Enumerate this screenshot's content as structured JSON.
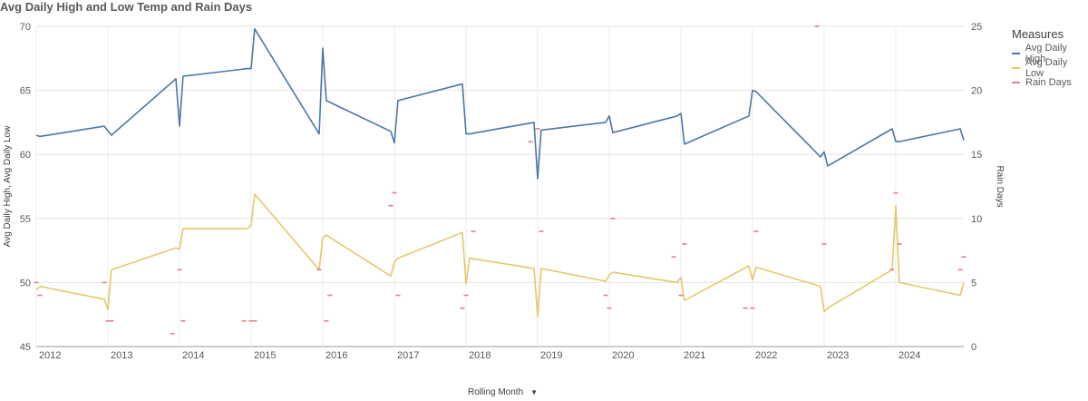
{
  "title": "Avg Daily High and Low Temp and Rain Days",
  "legend": {
    "title": "Measures",
    "items": [
      {
        "label": "Avg Daily High",
        "color": "#4a78a8"
      },
      {
        "label": "Avg Daily Low",
        "color": "#e3c96a"
      },
      {
        "label": "Rain Days",
        "color": "#e87b8e"
      }
    ]
  },
  "x_axis": {
    "title": "Rolling Month",
    "icon": "caret-down-icon"
  },
  "chart_data": {
    "type": "line",
    "title": "Avg Daily High and Low Temp and Rain Days",
    "xlabel": "Rolling Month",
    "ylabel": "Avg Daily High, Avg Daily Low",
    "y2label": "Rain Days",
    "ylim": [
      45,
      70
    ],
    "y2lim": [
      0,
      25
    ],
    "yticks": [
      45,
      50,
      55,
      60,
      65,
      70
    ],
    "y2ticks": [
      0,
      5,
      10,
      15,
      20,
      25
    ],
    "xlim": [
      2011.95,
      2024.9
    ],
    "xticks": [
      2012,
      2013,
      2014,
      2015,
      2016,
      2017,
      2018,
      2019,
      2020,
      2021,
      2022,
      2023,
      2024
    ],
    "grid": true,
    "legend_position": "right",
    "series": [
      {
        "name": "Avg Daily High",
        "axis": "left",
        "kind": "line",
        "color": "#4a78a8",
        "x": [
          2011.95,
          2012.0,
          2012.9,
          2013.0,
          2013.9,
          2013.95,
          2014.0,
          2014.9,
          2014.95,
          2015.0,
          2015.9,
          2015.95,
          2016.0,
          2016.9,
          2016.95,
          2017.0,
          2017.9,
          2017.95,
          2018.0,
          2018.9,
          2018.95,
          2019.0,
          2019.9,
          2019.95,
          2020.0,
          2020.9,
          2020.95,
          2021.0,
          2021.9,
          2021.95,
          2022.0,
          2022.9,
          2022.95,
          2023.0,
          2023.9,
          2023.95,
          2024.0,
          2024.85,
          2024.9
        ],
        "values": [
          61.5,
          61.4,
          62.2,
          61.5,
          65.9,
          62.2,
          66.1,
          66.7,
          66.7,
          69.8,
          61.6,
          68.3,
          64.2,
          61.8,
          60.9,
          64.2,
          65.5,
          61.6,
          61.6,
          62.5,
          58.1,
          61.9,
          62.5,
          63.0,
          61.7,
          63.0,
          63.2,
          60.8,
          63.0,
          65.0,
          64.9,
          59.8,
          60.2,
          59.1,
          62.0,
          61.0,
          61.0,
          62.0,
          61.1
        ]
      },
      {
        "name": "Avg Daily Low",
        "axis": "left",
        "kind": "line",
        "color": "#e3c96a",
        "x": [
          2011.95,
          2012.0,
          2012.9,
          2012.95,
          2013.0,
          2013.9,
          2013.95,
          2014.0,
          2014.9,
          2014.95,
          2015.0,
          2015.9,
          2015.95,
          2016.0,
          2016.9,
          2016.95,
          2017.0,
          2017.9,
          2017.95,
          2018.0,
          2018.9,
          2018.95,
          2019.0,
          2019.9,
          2019.95,
          2020.0,
          2020.9,
          2020.95,
          2021.0,
          2021.9,
          2021.95,
          2022.0,
          2022.9,
          2022.95,
          2023.0,
          2023.9,
          2023.95,
          2024.0,
          2024.85,
          2024.9
        ],
        "values": [
          49.4,
          49.7,
          48.7,
          47.9,
          51.0,
          52.7,
          52.6,
          54.2,
          54.2,
          54.5,
          56.9,
          51.0,
          53.5,
          53.7,
          50.5,
          51.6,
          51.9,
          53.9,
          49.9,
          51.9,
          51.1,
          47.3,
          51.1,
          50.1,
          50.6,
          50.8,
          50.0,
          50.4,
          48.6,
          51.3,
          50.2,
          51.2,
          49.7,
          47.7,
          48.0,
          51.0,
          56.0,
          50.0,
          49.0,
          50.0
        ]
      },
      {
        "name": "Rain Days",
        "axis": "right",
        "kind": "marker",
        "color": "#e87b8e",
        "x": [
          2011.95,
          2012.0,
          2012.9,
          2012.95,
          2013.0,
          2013.85,
          2013.95,
          2014.0,
          2014.85,
          2014.95,
          2015.0,
          2015.9,
          2016.0,
          2016.05,
          2016.9,
          2016.95,
          2017.0,
          2017.9,
          2017.95,
          2018.05,
          2018.85,
          2018.95,
          2019.0,
          2019.9,
          2019.95,
          2020.0,
          2020.85,
          2020.95,
          2021.0,
          2021.85,
          2021.95,
          2022.0,
          2022.85,
          2022.95,
          2023.9,
          2023.95,
          2024.0,
          2024.85,
          2024.9
        ],
        "values": [
          5,
          4,
          5,
          2,
          2,
          1,
          6,
          2,
          2,
          2,
          2,
          6,
          2,
          4,
          11,
          12,
          4,
          3,
          4,
          9,
          16,
          17,
          9,
          4,
          3,
          10,
          7,
          4,
          8,
          3,
          3,
          9,
          25,
          8,
          6,
          12,
          8,
          6,
          7
        ]
      }
    ]
  }
}
